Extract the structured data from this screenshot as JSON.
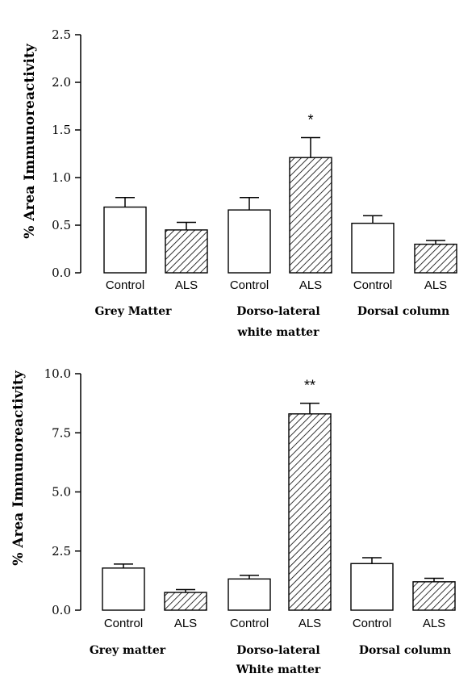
{
  "chart_data": [
    {
      "type": "bar",
      "ylabel": "% Area Immunoreactivity",
      "ylim": [
        0,
        2.5
      ],
      "yticks": [
        "0.0",
        "0.5",
        "1.0",
        "1.5",
        "2.0",
        "2.5"
      ],
      "categories": [
        "Control",
        "ALS",
        "Control",
        "ALS",
        "Control",
        "ALS"
      ],
      "groups": [
        "Grey Matter",
        "Dorso-lateral white matter",
        "Dorsal column"
      ],
      "group_lines": [
        [
          "Grey Matter"
        ],
        [
          "Dorso-lateral",
          "white matter"
        ],
        [
          "Dorsal column"
        ]
      ],
      "values": [
        0.69,
        0.45,
        0.66,
        1.21,
        0.52,
        0.3
      ],
      "errors": [
        0.1,
        0.08,
        0.13,
        0.21,
        0.08,
        0.04
      ],
      "patterns": [
        "open",
        "hatched",
        "open",
        "hatched",
        "open",
        "hatched"
      ],
      "significance": [
        "",
        "",
        "",
        "*",
        "",
        ""
      ]
    },
    {
      "type": "bar",
      "ylabel": "% Area Immunoreactivity",
      "ylim": [
        0,
        10.0
      ],
      "yticks": [
        "0.0",
        "2.5",
        "5.0",
        "7.5",
        "10.0"
      ],
      "categories": [
        "Control",
        "ALS",
        "Control",
        "ALS",
        "Control",
        "ALS"
      ],
      "groups": [
        "Grey matter",
        "Dorso-lateral White matter",
        "Dorsal column"
      ],
      "group_lines": [
        [
          "Grey matter"
        ],
        [
          "Dorso-lateral",
          "White matter"
        ],
        [
          "Dorsal column"
        ]
      ],
      "values": [
        1.78,
        0.75,
        1.32,
        8.3,
        1.97,
        1.2
      ],
      "errors": [
        0.17,
        0.12,
        0.15,
        0.45,
        0.25,
        0.15
      ],
      "patterns": [
        "open",
        "hatched",
        "open",
        "hatched",
        "open",
        "hatched"
      ],
      "significance": [
        "",
        "",
        "",
        "**",
        "",
        ""
      ]
    }
  ]
}
